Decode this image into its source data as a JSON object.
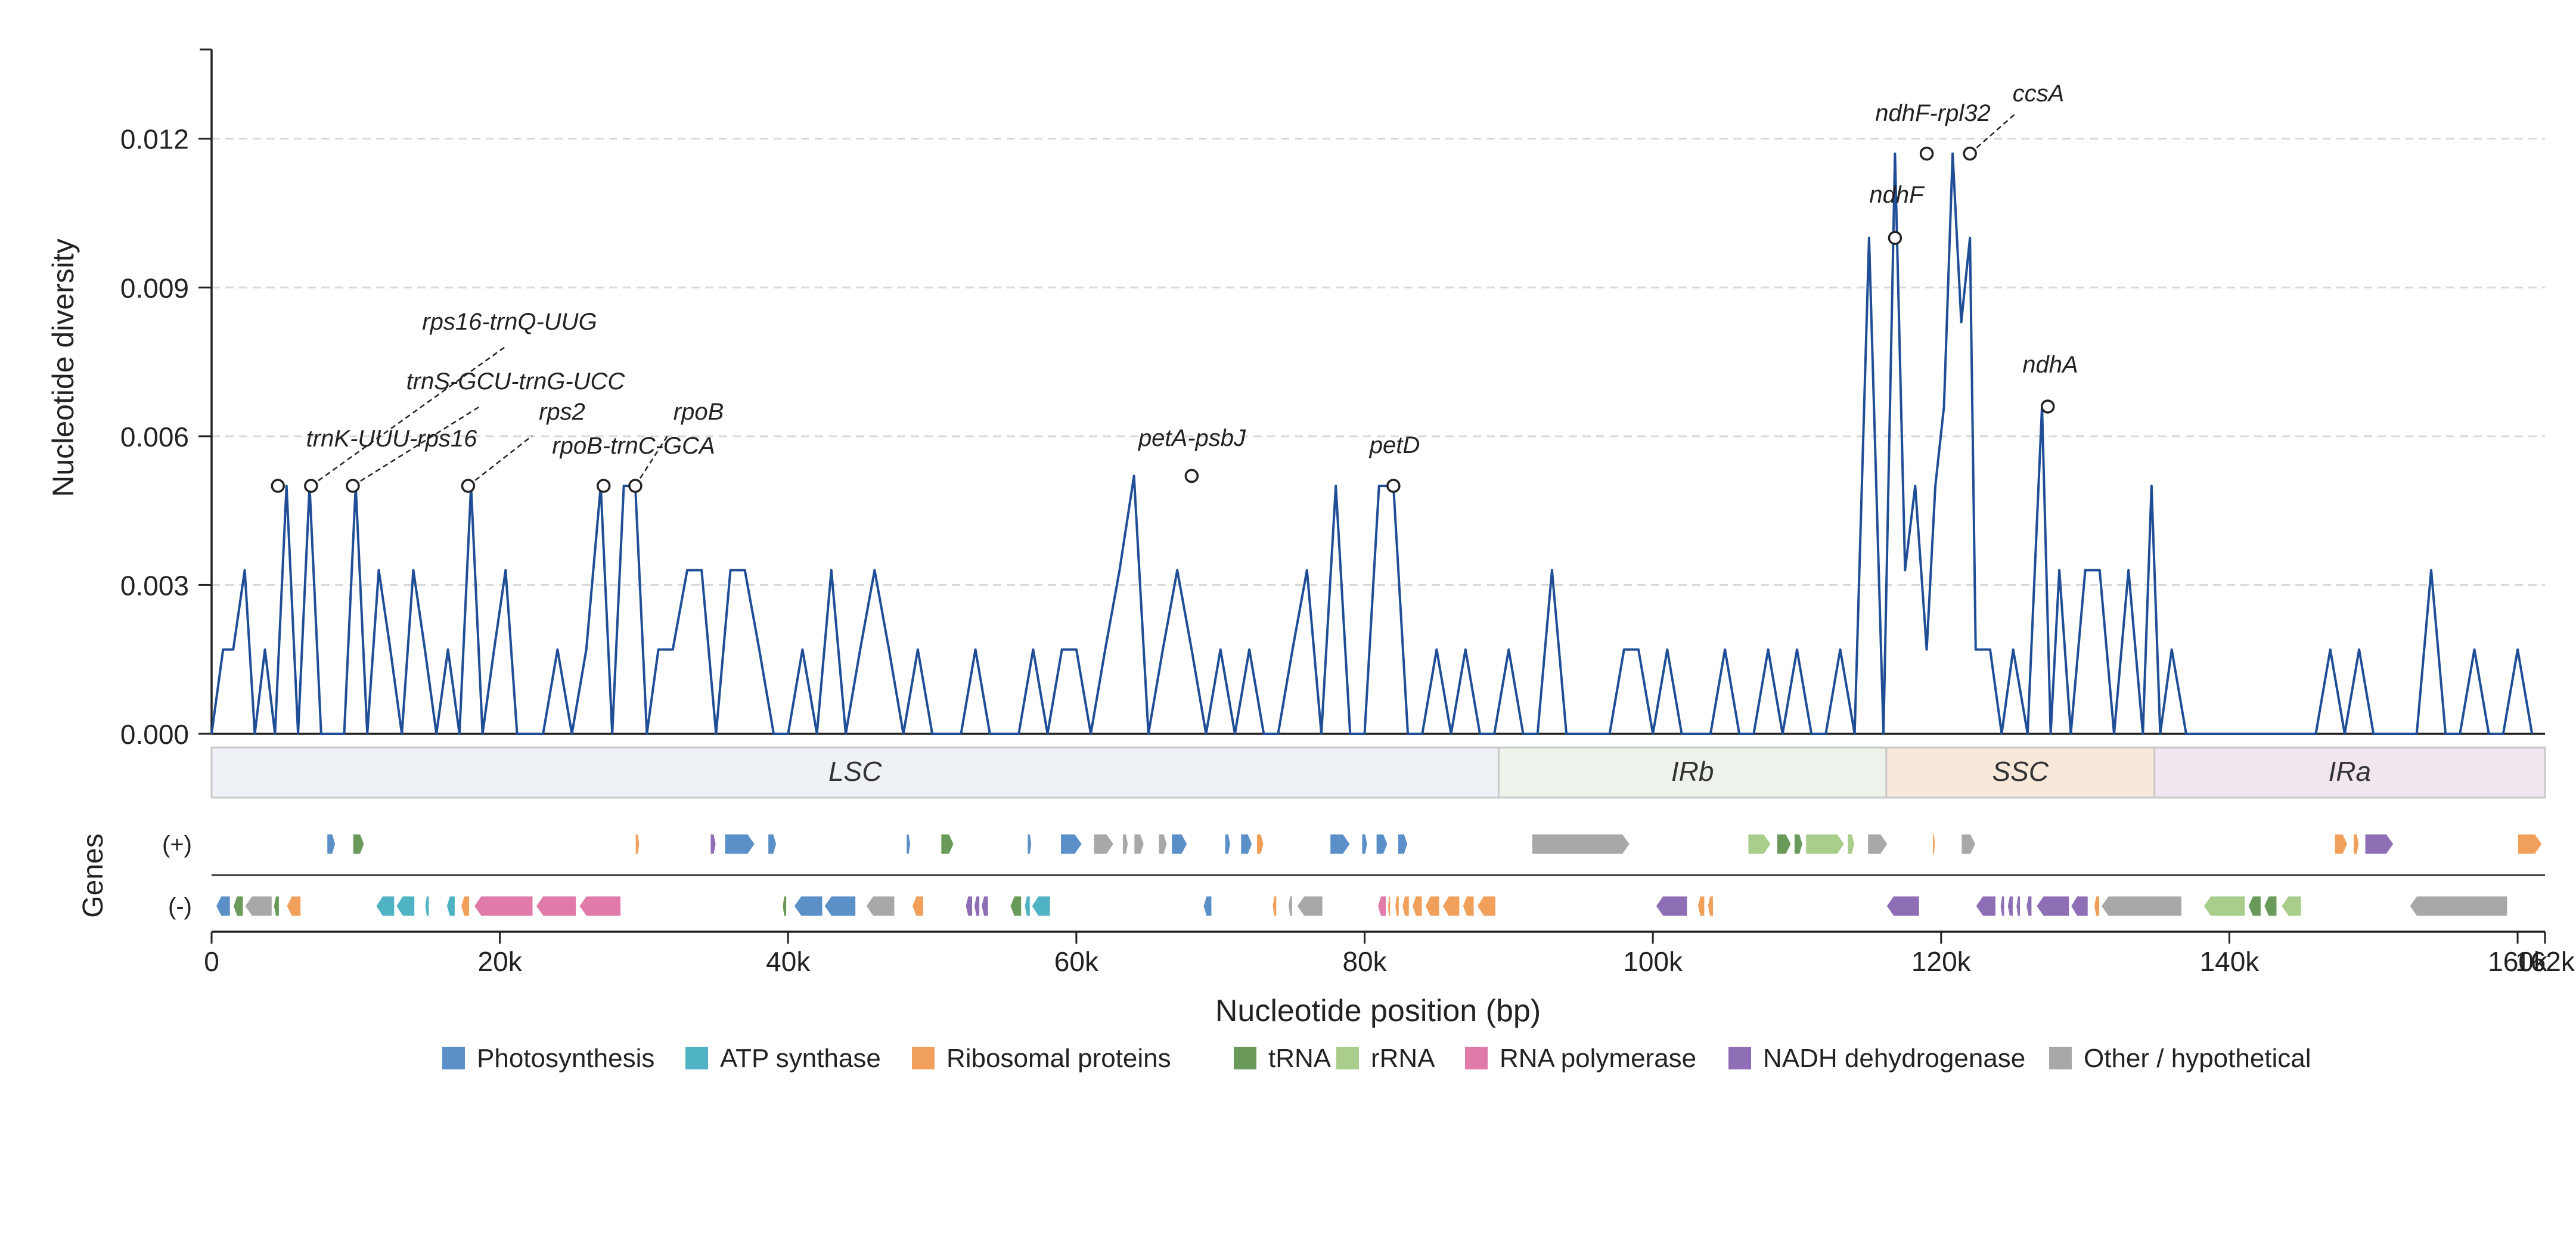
{
  "chart_data": {
    "type": "line",
    "xlabel": "Nucleotide position (bp)",
    "ylabel": "Nucleotide diversity",
    "xlim": [
      0,
      161900
    ],
    "ylim": [
      0,
      0.0138
    ],
    "x_ticks": [
      {
        "value": 0,
        "label": "0"
      },
      {
        "value": 20000,
        "label": "20k"
      },
      {
        "value": 40000,
        "label": "40k"
      },
      {
        "value": 60000,
        "label": "60k"
      },
      {
        "value": 80000,
        "label": "80k"
      },
      {
        "value": 100000,
        "label": "100k"
      },
      {
        "value": 120000,
        "label": "120k"
      },
      {
        "value": 140000,
        "label": "140k"
      },
      {
        "value": 160000,
        "label": "160k"
      },
      {
        "value": 161900,
        "label": "162k"
      }
    ],
    "y_ticks": [
      {
        "value": 0,
        "label": "0.000"
      },
      {
        "value": 0.003,
        "label": "0.003"
      },
      {
        "value": 0.006,
        "label": "0.006"
      },
      {
        "value": 0.009,
        "label": "0.009"
      },
      {
        "value": 0.012,
        "label": "0.012"
      }
    ],
    "grid": "horizontal dashed",
    "line_color": "#1f4e96",
    "series": [
      {
        "x": [
          0,
          800,
          1500,
          2300,
          3000,
          3700,
          4400,
          5200,
          6000,
          6800,
          7600,
          8400,
          9200,
          10000,
          10800,
          11600,
          12400,
          13200,
          14000,
          14800,
          15600,
          16400,
          17200,
          18000,
          18800,
          19600,
          20400,
          21200,
          22000,
          23000,
          24000,
          25000,
          26000,
          27000,
          27800,
          28600,
          29400,
          30200,
          31000,
          32000,
          33000,
          34000,
          35000,
          36000,
          37000,
          38000,
          39000,
          40000,
          41000,
          42000,
          43000,
          44000,
          45000,
          46000,
          47000,
          48000,
          49000,
          50000,
          51000,
          52000,
          53000,
          54000,
          55000,
          56000,
          57000,
          58000,
          59000,
          60000,
          61000,
          62000,
          63000,
          64000,
          65000,
          66000,
          67000,
          68000,
          69000,
          70000,
          71000,
          72000,
          73000,
          74000,
          75000,
          76000,
          77000,
          78000,
          79000,
          80000,
          81000,
          82000,
          83000,
          84000,
          85000,
          86000,
          87000,
          88000,
          89000,
          90000,
          91000,
          92000,
          93000,
          94000,
          95000,
          96000,
          97000,
          98000,
          99000,
          100000,
          101000,
          102000,
          103000,
          104000,
          105000,
          106000,
          107000,
          108000,
          109000,
          110000,
          111000,
          112000,
          113000,
          114000,
          115000,
          116000,
          116800,
          117500,
          118200,
          119000,
          119600,
          120200,
          120800,
          121400,
          122000,
          122400,
          122800,
          123400,
          124200,
          125000,
          126000,
          127000,
          127600,
          128200,
          129000,
          130000,
          131000,
          132000,
          133000,
          134000,
          134600,
          135200,
          136000,
          137000,
          138000,
          139000,
          140000,
          141000,
          142000,
          143000,
          144000,
          145000,
          146000,
          147000,
          148000,
          149000,
          150000,
          151000,
          152000,
          153000,
          154000,
          155000,
          156000,
          157000,
          158000,
          159000,
          160000,
          161000
        ],
        "values": [
          0,
          0.0017,
          0.0017,
          0.0033,
          0,
          0.0017,
          0,
          0.005,
          0,
          0.005,
          0,
          0,
          0,
          0.005,
          0,
          0.0033,
          0.0017,
          0,
          0.0033,
          0.0017,
          0,
          0.0017,
          0,
          0.005,
          0,
          0.0017,
          0.0033,
          0,
          0,
          0,
          0.0017,
          0,
          0.0017,
          0.005,
          0,
          0.005,
          0.005,
          0,
          0.0017,
          0.0017,
          0.0033,
          0.0033,
          0,
          0.0033,
          0.0033,
          0.0017,
          0,
          0,
          0.0017,
          0,
          0.0033,
          0,
          0.0017,
          0.0033,
          0.0017,
          0,
          0.0017,
          0,
          0,
          0,
          0.0017,
          0,
          0,
          0,
          0.0017,
          0,
          0.0017,
          0.0017,
          0,
          0.0017,
          0.0033,
          0.0052,
          0,
          0.0017,
          0.0033,
          0.0017,
          0,
          0.0017,
          0,
          0.0017,
          0,
          0,
          0.0017,
          0.0033,
          0,
          0.005,
          0,
          0,
          0.005,
          0.005,
          0,
          0,
          0.0017,
          0,
          0.0017,
          0,
          0,
          0.0017,
          0,
          0,
          0.0033,
          0,
          0,
          0,
          0,
          0.0017,
          0.0017,
          0,
          0.0017,
          0,
          0,
          0,
          0.0017,
          0,
          0,
          0.0017,
          0,
          0.0017,
          0,
          0,
          0.0017,
          0,
          0.01,
          0,
          0.0117,
          0.0033,
          0.005,
          0.0017,
          0.005,
          0.0066,
          0.0117,
          0.0083,
          0.01,
          0.0017,
          0.0017,
          0.0017,
          0,
          0.0017,
          0,
          0.0066,
          0,
          0.0033,
          0,
          0.0033,
          0.0033,
          0,
          0.0033,
          0,
          0.005,
          0,
          0.0017,
          0,
          0,
          0,
          0,
          0,
          0,
          0,
          0,
          0,
          0,
          0.0017,
          0,
          0.0017,
          0,
          0,
          0,
          0,
          0.0033,
          0,
          0,
          0.0017,
          0,
          0,
          0.0017,
          0
        ]
      }
    ],
    "peaks": [
      {
        "label": "trnK-UUU-rps16",
        "x": 4600,
        "y": 0.005,
        "leader": false
      },
      {
        "label": "rps16-trnQ-UUG",
        "x": 6900,
        "y": 0.005,
        "leader": true
      },
      {
        "label": "trnS-GCU-trnG-UCC",
        "x": 9800,
        "y": 0.005,
        "leader": true
      },
      {
        "label": "rps2",
        "x": 17800,
        "y": 0.005,
        "leader": true
      },
      {
        "label": "rpoB-trnC-GCA",
        "x": 27200,
        "y": 0.005,
        "leader": false
      },
      {
        "label": "rpoB",
        "x": 29400,
        "y": 0.005,
        "leader": true
      },
      {
        "label": "petA-psbJ",
        "x": 68000,
        "y": 0.0052,
        "leader": false
      },
      {
        "label": "petD",
        "x": 82000,
        "y": 0.005,
        "leader": false
      },
      {
        "label": "ndhF",
        "x": 116800,
        "y": 0.01,
        "leader": false
      },
      {
        "label": "ndhF-rpl32",
        "x": 119000,
        "y": 0.0117,
        "leader": false
      },
      {
        "label": "ccsA",
        "x": 122000,
        "y": 0.0117,
        "leader": true
      },
      {
        "label": "ndhA",
        "x": 127400,
        "y": 0.0066,
        "leader": false
      }
    ],
    "regions": [
      {
        "label": "LSC",
        "start": 0,
        "end": 89300,
        "color": "#eef2f6"
      },
      {
        "label": "IRb",
        "start": 89300,
        "end": 116200,
        "color": "#edf3ea"
      },
      {
        "label": "SSC",
        "start": 116200,
        "end": 134800,
        "color": "#f8e8da"
      },
      {
        "label": "IRa",
        "start": 134800,
        "end": 161900,
        "color": "#f1e6f0"
      }
    ],
    "genes_axis_label": "Genes",
    "strand_labels": {
      "plus": "(+)",
      "minus": "(-)"
    },
    "legend_placement": "bottom",
    "legend": [
      {
        "label": "Photosynthesis",
        "color": "#5b8fc8"
      },
      {
        "label": "ATP synthase",
        "color": "#4fb3c3"
      },
      {
        "label": "Ribosomal proteins",
        "color": "#f0a05a"
      },
      {
        "label": "tRNA",
        "color": "#6a9a5a"
      },
      {
        "label": "rRNA",
        "color": "#a9cd8a"
      },
      {
        "label": "RNA polymerase",
        "color": "#e07aa8"
      },
      {
        "label": "NADH dehydrogenase",
        "color": "#8e6fb5"
      },
      {
        "label": "Other / hypothetical",
        "color": "#a8a8a8"
      }
    ],
    "genes_plus": [
      {
        "start": 8000,
        "end": 8600,
        "cat": 0
      },
      {
        "start": 9800,
        "end": 10600,
        "cat": 3
      },
      {
        "start": 29400,
        "end": 29700,
        "cat": 2
      },
      {
        "start": 34600,
        "end": 35000,
        "cat": 6
      },
      {
        "start": 35600,
        "end": 37700,
        "cat": 0
      },
      {
        "start": 38600,
        "end": 39200,
        "cat": 0
      },
      {
        "start": 48200,
        "end": 48500,
        "cat": 0
      },
      {
        "start": 50600,
        "end": 51500,
        "cat": 3
      },
      {
        "start": 56600,
        "end": 56900,
        "cat": 0
      },
      {
        "start": 58900,
        "end": 60400,
        "cat": 0
      },
      {
        "start": 61200,
        "end": 62600,
        "cat": 7
      },
      {
        "start": 63200,
        "end": 63600,
        "cat": 7
      },
      {
        "start": 64000,
        "end": 64700,
        "cat": 7
      },
      {
        "start": 65700,
        "end": 66300,
        "cat": 7
      },
      {
        "start": 66600,
        "end": 67700,
        "cat": 0
      },
      {
        "start": 70300,
        "end": 70700,
        "cat": 0
      },
      {
        "start": 71400,
        "end": 72200,
        "cat": 0
      },
      {
        "start": 72500,
        "end": 73000,
        "cat": 2
      },
      {
        "start": 77600,
        "end": 79000,
        "cat": 0
      },
      {
        "start": 79800,
        "end": 80200,
        "cat": 0
      },
      {
        "start": 80800,
        "end": 81600,
        "cat": 0
      },
      {
        "start": 82300,
        "end": 83000,
        "cat": 0
      },
      {
        "start": 91600,
        "end": 98400,
        "cat": 7
      },
      {
        "start": 106600,
        "end": 108200,
        "cat": 4
      },
      {
        "start": 108600,
        "end": 109600,
        "cat": 3
      },
      {
        "start": 109800,
        "end": 110400,
        "cat": 3
      },
      {
        "start": 110600,
        "end": 113300,
        "cat": 4
      },
      {
        "start": 113500,
        "end": 114000,
        "cat": 4
      },
      {
        "start": 114900,
        "end": 116300,
        "cat": 7
      },
      {
        "start": 119400,
        "end": 119600,
        "cat": 2
      },
      {
        "start": 121400,
        "end": 122400,
        "cat": 7
      },
      {
        "start": 147300,
        "end": 148200,
        "cat": 2
      },
      {
        "start": 148600,
        "end": 149000,
        "cat": 2
      },
      {
        "start": 149400,
        "end": 151400,
        "cat": 6
      },
      {
        "start": 160000,
        "end": 161700,
        "cat": 2
      }
    ],
    "genes_minus": [
      {
        "start": 300,
        "end": 1300,
        "cat": 0
      },
      {
        "start": 1500,
        "end": 2200,
        "cat": 3
      },
      {
        "start": 2300,
        "end": 4200,
        "cat": 7
      },
      {
        "start": 4300,
        "end": 4700,
        "cat": 3
      },
      {
        "start": 5200,
        "end": 6200,
        "cat": 2
      },
      {
        "start": 11400,
        "end": 12700,
        "cat": 1
      },
      {
        "start": 12800,
        "end": 14100,
        "cat": 1
      },
      {
        "start": 14800,
        "end": 15100,
        "cat": 1
      },
      {
        "start": 16300,
        "end": 16900,
        "cat": 1
      },
      {
        "start": 17300,
        "end": 17900,
        "cat": 2
      },
      {
        "start": 18200,
        "end": 22300,
        "cat": 5
      },
      {
        "start": 22500,
        "end": 25300,
        "cat": 5
      },
      {
        "start": 25500,
        "end": 28400,
        "cat": 5
      },
      {
        "start": 39600,
        "end": 39900,
        "cat": 3
      },
      {
        "start": 40400,
        "end": 42400,
        "cat": 0
      },
      {
        "start": 42500,
        "end": 44700,
        "cat": 0
      },
      {
        "start": 45400,
        "end": 47400,
        "cat": 7
      },
      {
        "start": 48600,
        "end": 49400,
        "cat": 2
      },
      {
        "start": 52300,
        "end": 52800,
        "cat": 6
      },
      {
        "start": 52900,
        "end": 53300,
        "cat": 6
      },
      {
        "start": 53400,
        "end": 53900,
        "cat": 6
      },
      {
        "start": 55400,
        "end": 56200,
        "cat": 3
      },
      {
        "start": 56400,
        "end": 56800,
        "cat": 1
      },
      {
        "start": 56900,
        "end": 58200,
        "cat": 1
      },
      {
        "start": 68800,
        "end": 69400,
        "cat": 0
      },
      {
        "start": 73600,
        "end": 73900,
        "cat": 2
      },
      {
        "start": 74700,
        "end": 75000,
        "cat": 7
      },
      {
        "start": 75300,
        "end": 77100,
        "cat": 7
      },
      {
        "start": 80900,
        "end": 81500,
        "cat": 5
      },
      {
        "start": 81600,
        "end": 81800,
        "cat": 2
      },
      {
        "start": 82100,
        "end": 82400,
        "cat": 2
      },
      {
        "start": 82600,
        "end": 83100,
        "cat": 2
      },
      {
        "start": 83300,
        "end": 84000,
        "cat": 2
      },
      {
        "start": 84200,
        "end": 85200,
        "cat": 2
      },
      {
        "start": 85400,
        "end": 86600,
        "cat": 2
      },
      {
        "start": 86800,
        "end": 87600,
        "cat": 2
      },
      {
        "start": 87800,
        "end": 89100,
        "cat": 2
      },
      {
        "start": 100200,
        "end": 102400,
        "cat": 6
      },
      {
        "start": 103100,
        "end": 103600,
        "cat": 2
      },
      {
        "start": 103800,
        "end": 104200,
        "cat": 2
      },
      {
        "start": 116200,
        "end": 118500,
        "cat": 6
      },
      {
        "start": 122400,
        "end": 123800,
        "cat": 6
      },
      {
        "start": 124100,
        "end": 124400,
        "cat": 6
      },
      {
        "start": 124600,
        "end": 125000,
        "cat": 6
      },
      {
        "start": 125200,
        "end": 125500,
        "cat": 6
      },
      {
        "start": 125900,
        "end": 126300,
        "cat": 6
      },
      {
        "start": 126600,
        "end": 128900,
        "cat": 6
      },
      {
        "start": 129000,
        "end": 130200,
        "cat": 6
      },
      {
        "start": 130600,
        "end": 131000,
        "cat": 2
      },
      {
        "start": 131100,
        "end": 136700,
        "cat": 7
      },
      {
        "start": 138200,
        "end": 141100,
        "cat": 4
      },
      {
        "start": 141300,
        "end": 142200,
        "cat": 3
      },
      {
        "start": 142400,
        "end": 143300,
        "cat": 3
      },
      {
        "start": 143600,
        "end": 145000,
        "cat": 4
      },
      {
        "start": 152500,
        "end": 159300,
        "cat": 7
      }
    ]
  }
}
